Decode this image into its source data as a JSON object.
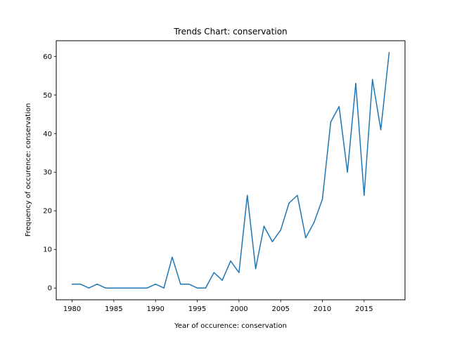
{
  "chart_data": {
    "type": "line",
    "title": "Trends Chart: conservation",
    "xlabel": "Year of occurence: conservation",
    "ylabel": "Frequency of occurence: conservation",
    "xlim": [
      1978.1,
      2019.9
    ],
    "ylim": [
      -3.05,
      64.05
    ],
    "xticks": [
      1980,
      1985,
      1990,
      1995,
      2000,
      2005,
      2010,
      2015
    ],
    "yticks": [
      0,
      10,
      20,
      30,
      40,
      50,
      60
    ],
    "grid": false,
    "line_color": "#1f77b4",
    "series": [
      {
        "x": [
          1980,
          1981,
          1982,
          1983,
          1984,
          1985,
          1986,
          1987,
          1988,
          1989,
          1990,
          1991,
          1992,
          1993,
          1994,
          1995,
          1996,
          1997,
          1998,
          1999,
          2000,
          2001,
          2002,
          2003,
          2004,
          2005,
          2006,
          2007,
          2008,
          2009,
          2010,
          2011,
          2012,
          2013,
          2014,
          2015,
          2016,
          2017,
          2018
        ],
        "values": [
          1,
          1,
          0,
          1,
          0,
          0,
          0,
          0,
          0,
          0,
          1,
          0,
          8,
          1,
          1,
          0,
          0,
          4,
          2,
          7,
          4,
          24,
          5,
          16,
          12,
          15,
          22,
          24,
          13,
          17,
          23,
          43,
          47,
          30,
          53,
          24,
          54,
          41,
          61
        ]
      }
    ]
  }
}
